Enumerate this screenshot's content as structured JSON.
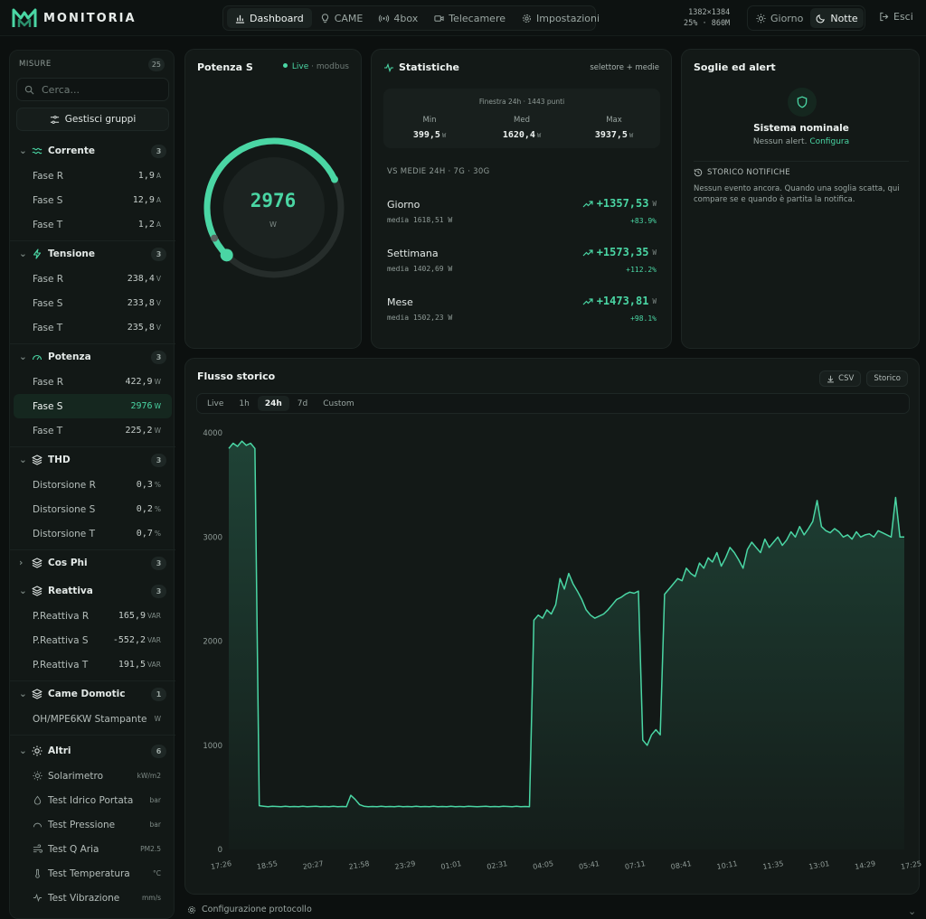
{
  "header": {
    "brand": "MONITORIA",
    "nav": [
      {
        "label": "Dashboard",
        "icon": "bar-chart-icon",
        "active": true
      },
      {
        "label": "CAME",
        "icon": "lightbulb-icon",
        "active": false
      },
      {
        "label": "4box",
        "icon": "radio-icon",
        "active": false
      },
      {
        "label": "Telecamere",
        "icon": "video-icon",
        "active": false
      },
      {
        "label": "Impostazioni",
        "icon": "gear-icon",
        "active": false
      }
    ],
    "resolution": "1382×1384",
    "stats": "25% · 860M",
    "theme_day": "Giorno",
    "theme_night": "Notte",
    "logout": "Esci"
  },
  "sidebar": {
    "title": "MISURE",
    "count": "25",
    "search_placeholder": "Cerca...",
    "manage_groups": "Gestisci gruppi",
    "groups": [
      {
        "name": "Corrente",
        "count": "3",
        "icon": "waves-icon",
        "expanded": true,
        "items": [
          {
            "label": "Fase R",
            "value": "1,9",
            "unit": "A"
          },
          {
            "label": "Fase S",
            "value": "12,9",
            "unit": "A"
          },
          {
            "label": "Fase T",
            "value": "1,2",
            "unit": "A"
          }
        ]
      },
      {
        "name": "Tensione",
        "count": "3",
        "icon": "bolt-icon",
        "expanded": true,
        "items": [
          {
            "label": "Fase R",
            "value": "238,4",
            "unit": "V"
          },
          {
            "label": "Fase S",
            "value": "233,8",
            "unit": "V"
          },
          {
            "label": "Fase T",
            "value": "235,8",
            "unit": "V"
          }
        ]
      },
      {
        "name": "Potenza",
        "count": "3",
        "icon": "gauge-icon",
        "expanded": true,
        "items": [
          {
            "label": "Fase R",
            "value": "422,9",
            "unit": "W"
          },
          {
            "label": "Fase S",
            "value": "2976",
            "unit": "W",
            "selected": true
          },
          {
            "label": "Fase T",
            "value": "225,2",
            "unit": "W"
          }
        ]
      },
      {
        "name": "THD",
        "count": "3",
        "icon": "layers-icon",
        "expanded": true,
        "items": [
          {
            "label": "Distorsione R",
            "value": "0,3",
            "unit": "%"
          },
          {
            "label": "Distorsione S",
            "value": "0,2",
            "unit": "%"
          },
          {
            "label": "Distorsione T",
            "value": "0,7",
            "unit": "%"
          }
        ]
      },
      {
        "name": "Cos Phi",
        "count": "3",
        "icon": "layers-icon",
        "expanded": false,
        "items": []
      },
      {
        "name": "Reattiva",
        "count": "3",
        "icon": "layers-icon",
        "expanded": true,
        "items": [
          {
            "label": "P.Reattiva R",
            "value": "165,9",
            "unit": "VAR"
          },
          {
            "label": "P.Reattiva S",
            "value": "-552,2",
            "unit": "VAR"
          },
          {
            "label": "P.Reattiva T",
            "value": "191,5",
            "unit": "VAR"
          }
        ]
      },
      {
        "name": "Came Domotic",
        "count": "1",
        "icon": "layers-icon",
        "expanded": true,
        "items": [
          {
            "label": "OH/MPE6KW Stampante",
            "value": "",
            "unit": "W"
          }
        ]
      },
      {
        "name": "Altri",
        "count": "6",
        "icon": "sun-icon",
        "expanded": true,
        "items": [
          {
            "label": "Solarimetro",
            "value": "",
            "unit": "kW/m2",
            "icon": "sun-icon"
          },
          {
            "label": "Test Idrico Portata",
            "value": "",
            "unit": "bar",
            "icon": "drop-icon"
          },
          {
            "label": "Test Pressione",
            "value": "",
            "unit": "bar",
            "icon": "gauge-icon"
          },
          {
            "label": "Test Q Aria",
            "value": "",
            "unit": "PM2.5",
            "icon": "wind-icon"
          },
          {
            "label": "Test Temperatura",
            "value": "",
            "unit": "°C",
            "icon": "thermometer-icon"
          },
          {
            "label": "Test Vibrazione",
            "value": "",
            "unit": "mm/s",
            "icon": "pulse-icon"
          }
        ]
      }
    ]
  },
  "gauge_card": {
    "title": "Potenza S",
    "live": "Live",
    "source": "· modbus",
    "value": "2976",
    "unit": "W",
    "fraction": 0.74
  },
  "stats_card": {
    "title": "Statistiche",
    "right": "selettore + medie",
    "window": "Finestra 24h · 1443 punti",
    "min_label": "Min",
    "min": "399,5",
    "med_label": "Med",
    "med": "1620,4",
    "max_label": "Max",
    "max": "3937,5",
    "unit": "W",
    "vs": "VS MEDIE 24H · 7G · 30G",
    "comparisons": [
      {
        "name": "Giorno",
        "mean": "media 1618,51 W",
        "delta": "+1357,53",
        "pct": "+83.9%"
      },
      {
        "name": "Settimana",
        "mean": "media 1402,69 W",
        "delta": "+1573,35",
        "pct": "+112.2%"
      },
      {
        "name": "Mese",
        "mean": "media 1502,23 W",
        "delta": "+1473,81",
        "pct": "+98.1%"
      }
    ]
  },
  "alerts_card": {
    "title": "Soglie ed alert",
    "status": "Sistema nominale",
    "no_alert": "Nessun alert.",
    "configure": "Configura",
    "history_title": "STORICO NOTIFICHE",
    "history_text": "Nessun evento ancora. Quando una soglia scatta, qui compare se e quando è partita la notifica."
  },
  "chart_card": {
    "title": "Flusso storico",
    "csv": "CSV",
    "history": "Storico",
    "ranges": [
      "Live",
      "1h",
      "24h",
      "7d",
      "Custom"
    ],
    "active_range": "24h"
  },
  "chart_data": {
    "type": "area",
    "title": "Flusso storico",
    "xlabel": "",
    "ylabel": "",
    "ylim": [
      0,
      4000
    ],
    "yticks": [
      0,
      1000,
      2000,
      3000,
      4000
    ],
    "xticks": [
      "17:26",
      "18:55",
      "20:27",
      "21:58",
      "23:29",
      "01:01",
      "02:31",
      "04:05",
      "05:41",
      "07:11",
      "08:41",
      "10:11",
      "11:35",
      "13:01",
      "14:29",
      "17:25"
    ],
    "grid": false,
    "series": [
      {
        "values": [
          3850,
          3900,
          3870,
          3920,
          3880,
          3900,
          3850,
          420,
          415,
          410,
          415,
          412,
          410,
          415,
          410,
          412,
          410,
          415,
          410,
          412,
          414,
          410,
          412,
          410,
          415,
          410,
          412,
          410,
          520,
          480,
          430,
          415,
          410,
          412,
          410,
          415,
          410,
          412,
          410,
          415,
          410,
          412,
          410,
          415,
          410,
          412,
          410,
          415,
          410,
          412,
          410,
          415,
          410,
          412,
          410,
          415,
          412,
          410,
          412,
          415,
          410,
          412,
          410,
          415,
          412,
          410,
          415,
          410,
          412,
          410,
          2200,
          2250,
          2220,
          2300,
          2260,
          2350,
          2600,
          2500,
          2650,
          2550,
          2480,
          2400,
          2300,
          2250,
          2220,
          2240,
          2260,
          2300,
          2350,
          2400,
          2420,
          2450,
          2470,
          2460,
          2480,
          1050,
          1000,
          1100,
          1150,
          1100,
          2450,
          2500,
          2550,
          2600,
          2580,
          2700,
          2650,
          2620,
          2750,
          2700,
          2800,
          2760,
          2850,
          2720,
          2800,
          2900,
          2850,
          2780,
          2700,
          2880,
          2950,
          2900,
          2850,
          2980,
          2900,
          2950,
          3000,
          2920,
          2970,
          3050,
          3000,
          3100,
          3020,
          3080,
          3150,
          3350,
          3100,
          3060,
          3040,
          3080,
          3050,
          3000,
          3020,
          2980,
          3050,
          3000,
          3020,
          3030,
          3000,
          3060,
          3040,
          3020,
          3000,
          3380,
          3000,
          3000
        ]
      }
    ]
  },
  "footer": {
    "text": "Configurazione protocollo"
  }
}
